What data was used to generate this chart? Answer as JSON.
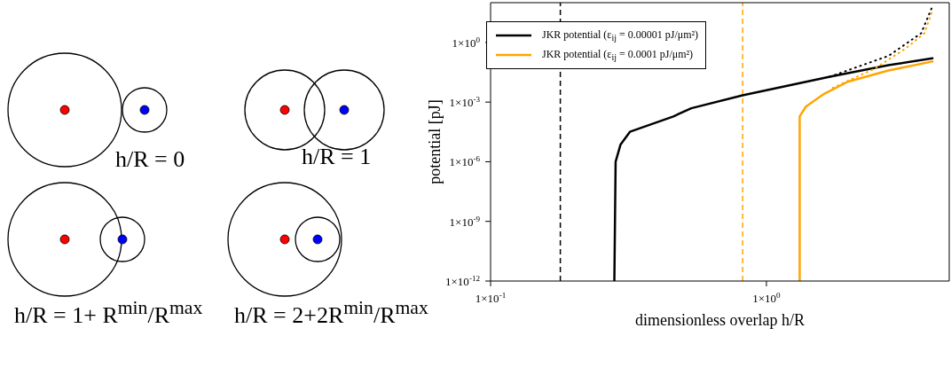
{
  "chart_data": {
    "type": "line",
    "xlabel": "dimensionless overlap h/R",
    "ylabel": "potential [pJ]",
    "log": "xy",
    "xlim": [
      0.1,
      4.6
    ],
    "ylim": [
      1e-12,
      100
    ],
    "xticks": [
      {
        "value": 0.1,
        "label": "1×10$^{-1}$"
      },
      {
        "value": 1,
        "label": "1×10$^{0}$"
      }
    ],
    "yticks": [
      {
        "value": 1e-12,
        "label": "1×10$^{-12}$"
      },
      {
        "value": 1e-09,
        "label": "1×10$^{-9}$"
      },
      {
        "value": 1e-06,
        "label": "1×10$^{-6}$"
      },
      {
        "value": 0.001,
        "label": "1×10$^{-3}$"
      },
      {
        "value": 1,
        "label": "1×10$^{0}$"
      }
    ],
    "grid": false,
    "legend": "top left",
    "marker": "none",
    "series": [
      {
        "name": "JKR potential (ε$_{ij}$ = 0.00001 pJ/μm²)",
        "color": "#000000",
        "line_style": "solid",
        "x": [
          0.281,
          0.284,
          0.296,
          0.32,
          0.46,
          0.534,
          0.82,
          1.7,
          2.77,
          4.0
        ],
        "values": [
          1e-12,
          1e-06,
          7.4e-06,
          3.2e-05,
          0.00019,
          0.00049,
          0.0022,
          0.019,
          0.072,
          0.16
        ]
      },
      {
        "name": "JKR potential (ε$_{ij}$ = 0.0001 pJ/μm²)",
        "color": "#ffa500",
        "line_style": "solid",
        "x": [
          1.32,
          1.32,
          1.39,
          1.62,
          1.97,
          2.77,
          4.0
        ],
        "values": [
          1e-12,
          0.00019,
          0.00059,
          0.0026,
          0.0105,
          0.039,
          0.11
        ]
      },
      {
        "color": "#000000",
        "line_style": "dotted",
        "x": [
          1.7,
          2.77,
          3.64,
          4.0
        ],
        "values": [
          0.019,
          0.21,
          2.9,
          67
        ]
      },
      {
        "color": "#ffa500",
        "line_style": "dotted",
        "x": [
          1.74,
          2.46,
          3.2,
          3.74,
          4.0
        ],
        "values": [
          0.0052,
          0.047,
          0.5,
          2.9,
          40
        ]
      }
    ],
    "ref_lines": [
      {
        "axis": "x",
        "value": 0.179,
        "color": "#000000",
        "line_style": "dashed"
      },
      {
        "axis": "x",
        "value": 0.82,
        "color": "#ffa500",
        "line_style": "dashed"
      }
    ],
    "annotations": [
      "h/R = 0",
      "h/R = 1",
      "h/R = 1+ R$^{min}$/R$^{max}$",
      "h/R = 2+2R$^{min}$/R$^{max}$"
    ]
  }
}
